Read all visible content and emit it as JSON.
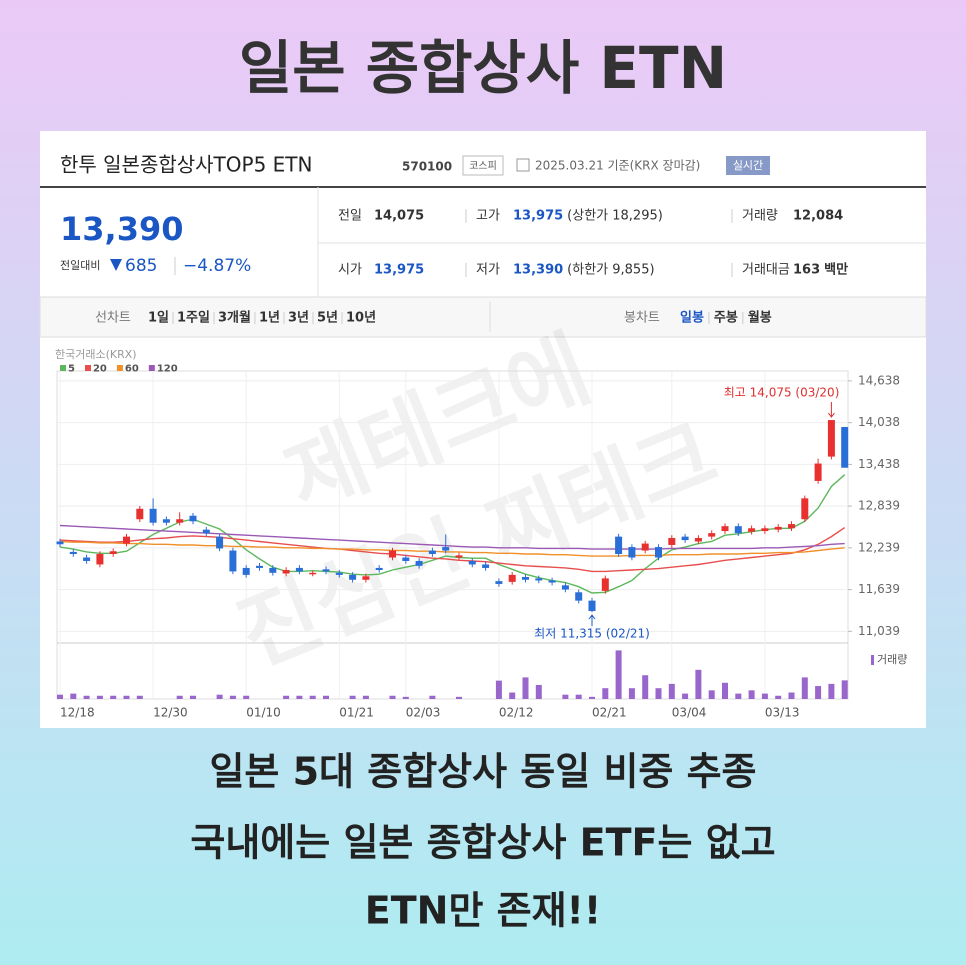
{
  "header": {
    "title": "일본 종합상사 ETN"
  },
  "quote": {
    "name": "한투 일본종합상사TOP5 ETN",
    "code": "570100",
    "market": "코스피",
    "date": "2025.03.21 기준(KRX 장마감)",
    "realtime": "실시간",
    "price": "13,390",
    "change_label": "전일대비",
    "change": "685",
    "change_pct": "−4.87%",
    "stats": [
      [
        {
          "label": "전일",
          "value": "14,075"
        },
        {
          "label": "고가",
          "value": "13,975",
          "note": "(상한가 18,295)"
        },
        {
          "label": "거래량",
          "value": "12,084"
        }
      ],
      [
        {
          "label": "시가",
          "value": "13,975"
        },
        {
          "label": "저가",
          "value": "13,390",
          "note": "(하한가 9,855)"
        },
        {
          "label": "거래대금",
          "value": "163",
          "unit": "백만"
        }
      ]
    ]
  },
  "tabs": {
    "line_label": "선차트",
    "line_periods": [
      "1일",
      "1주일",
      "3개월",
      "1년",
      "3년",
      "5년",
      "10년"
    ],
    "candle_label": "봉차트",
    "candle_periods": [
      "일봉",
      "주봉",
      "월봉"
    ]
  },
  "watermark": [
    "제테크에",
    "진심인 찌테크"
  ],
  "chart_data": {
    "type": "candlestick",
    "source": "한국거래소(KRX)",
    "grid": true,
    "up_color": "#e8312f",
    "down_color": "#2a6ed8",
    "categories": [
      "12/18",
      null,
      null,
      null,
      null,
      null,
      null,
      "12/30",
      null,
      null,
      null,
      null,
      null,
      null,
      "01/10",
      null,
      null,
      null,
      null,
      null,
      null,
      "01/21",
      null,
      null,
      null,
      null,
      "02/03",
      null,
      null,
      null,
      null,
      null,
      null,
      "02/12",
      null,
      null,
      null,
      null,
      null,
      null,
      "02/21",
      null,
      null,
      null,
      null,
      null,
      "03/04",
      null,
      null,
      null,
      null,
      null,
      null,
      "03/13",
      null,
      null,
      null,
      null,
      null,
      null
    ],
    "open": [
      12330,
      12180,
      12100,
      12000,
      12150,
      12300,
      12650,
      12800,
      12650,
      12600,
      12700,
      12500,
      12400,
      12200,
      11950,
      11980,
      11950,
      11870,
      11950,
      11870,
      11930,
      11880,
      11850,
      11780,
      11950,
      12100,
      12100,
      12050,
      12200,
      12250,
      12100,
      12050,
      12000,
      11760,
      11750,
      11820,
      11800,
      11770,
      11700,
      11600,
      11480,
      11620,
      12400,
      12250,
      12200,
      12250,
      12280,
      12400,
      12330,
      12400,
      12480,
      12550,
      12470,
      12480,
      12500,
      12520,
      12650,
      13200,
      13550,
      13975
    ],
    "high": [
      12370,
      12220,
      12140,
      12190,
      12230,
      12440,
      12840,
      12950,
      12690,
      12750,
      12740,
      12540,
      12440,
      12240,
      11990,
      12020,
      11990,
      11960,
      11990,
      11910,
      11970,
      11920,
      11890,
      11870,
      11990,
      12240,
      12140,
      12090,
      12240,
      12430,
      12170,
      12090,
      12040,
      11800,
      11890,
      11860,
      11840,
      11810,
      11740,
      11640,
      11520,
      11840,
      12440,
      12290,
      12340,
      12290,
      12420,
      12440,
      12420,
      12490,
      12590,
      12590,
      12560,
      12560,
      12580,
      12620,
      12990,
      13520,
      14075,
      13975
    ],
    "low": [
      12250,
      12110,
      12010,
      11960,
      12110,
      12260,
      12610,
      12560,
      12560,
      12560,
      12580,
      12410,
      12190,
      11860,
      11810,
      11910,
      11840,
      11830,
      11860,
      11830,
      11860,
      11810,
      11740,
      11740,
      11880,
      12060,
      12010,
      11940,
      12110,
      12160,
      12060,
      11960,
      11910,
      11680,
      11710,
      11740,
      11730,
      11700,
      11600,
      11440,
      11315,
      11580,
      12110,
      12060,
      12160,
      12060,
      12240,
      12310,
      12290,
      12360,
      12440,
      12410,
      12430,
      12440,
      12460,
      12480,
      12610,
      13160,
      13510,
      13390
    ],
    "close": [
      12290,
      12150,
      12050,
      12150,
      12190,
      12400,
      12800,
      12600,
      12600,
      12650,
      12620,
      12450,
      12230,
      11900,
      11850,
      11950,
      11880,
      11920,
      11900,
      11880,
      11900,
      11850,
      11780,
      11830,
      11920,
      12200,
      12050,
      11980,
      12150,
      12200,
      12130,
      12000,
      11950,
      11720,
      11850,
      11780,
      11770,
      11740,
      11640,
      11480,
      11330,
      11800,
      12150,
      12100,
      12300,
      12100,
      12380,
      12350,
      12380,
      12450,
      12550,
      12450,
      12520,
      12520,
      12540,
      12580,
      12950,
      13450,
      14075,
      13390
    ],
    "series": [
      {
        "name": "5",
        "color": "#5cb85c",
        "values": [
          12250,
          12220,
          12180,
          12160,
          12160,
          12190,
          12310,
          12430,
          12520,
          12610,
          12650,
          12580,
          12510,
          12370,
          12210,
          12080,
          11960,
          11900,
          11900,
          11910,
          11900,
          11890,
          11860,
          11850,
          11860,
          11920,
          11960,
          12000,
          12060,
          12120,
          12100,
          12090,
          12090,
          12000,
          11930,
          11860,
          11810,
          11770,
          11740,
          11680,
          11590,
          11600,
          11680,
          11770,
          11940,
          12090,
          12210,
          12250,
          12300,
          12330,
          12420,
          12440,
          12470,
          12500,
          12520,
          12520,
          12620,
          12810,
          13120,
          13290
        ]
      },
      {
        "name": "20",
        "color": "#e84e4e",
        "values": [
          12350,
          12340,
          12330,
          12320,
          12320,
          12330,
          12350,
          12370,
          12380,
          12400,
          12410,
          12400,
          12390,
          12370,
          12350,
          12330,
          12310,
          12290,
          12270,
          12250,
          12230,
          12220,
          12200,
          12180,
          12160,
          12150,
          12130,
          12110,
          12090,
          12080,
          12060,
          12050,
          12040,
          12020,
          12000,
          11980,
          11970,
          11960,
          11950,
          11930,
          11900,
          11900,
          11910,
          11920,
          11930,
          11940,
          11960,
          11980,
          12000,
          12030,
          12060,
          12080,
          12100,
          12120,
          12140,
          12160,
          12210,
          12290,
          12400,
          12530
        ]
      },
      {
        "name": "60",
        "color": "#f0902a",
        "values": [
          12330,
          12320,
          12320,
          12310,
          12310,
          12300,
          12300,
          12290,
          12290,
          12280,
          12280,
          12270,
          12270,
          12260,
          12260,
          12250,
          12250,
          12240,
          12240,
          12230,
          12230,
          12220,
          12220,
          12210,
          12210,
          12200,
          12200,
          12190,
          12190,
          12180,
          12180,
          12170,
          12170,
          12160,
          12160,
          12150,
          12150,
          12140,
          12140,
          12130,
          12120,
          12120,
          12120,
          12130,
          12130,
          12130,
          12140,
          12140,
          12140,
          12150,
          12150,
          12150,
          12160,
          12160,
          12170,
          12170,
          12180,
          12200,
          12220,
          12240
        ]
      },
      {
        "name": "120",
        "color": "#9b59b6",
        "values": [
          12560,
          12550,
          12540,
          12530,
          12520,
          12510,
          12500,
          12490,
          12480,
          12470,
          12460,
          12450,
          12440,
          12430,
          12420,
          12410,
          12400,
          12390,
          12380,
          12370,
          12360,
          12350,
          12340,
          12330,
          12320,
          12310,
          12300,
          12290,
          12280,
          12270,
          12260,
          12250,
          12250,
          12240,
          12240,
          12240,
          12230,
          12230,
          12230,
          12230,
          12220,
          12220,
          12220,
          12220,
          12220,
          12220,
          12230,
          12230,
          12230,
          12230,
          12230,
          12230,
          12230,
          12240,
          12240,
          12250,
          12260,
          12270,
          12290,
          12300
        ]
      }
    ],
    "ylim": [
      10900,
      14780
    ],
    "yticks": [
      {
        "value": 11039,
        "label": "11,039"
      },
      {
        "value": 11639,
        "label": "11,639"
      },
      {
        "value": 12239,
        "label": "12,239"
      },
      {
        "value": 12839,
        "label": "12,839"
      },
      {
        "value": 13438,
        "label": "13,438"
      },
      {
        "value": 14038,
        "label": "14,038"
      },
      {
        "value": 14638,
        "label": "14,638"
      }
    ],
    "annotations": {
      "high": "최고 14,075 (03/20)",
      "low": "최저 11,315 (02/21)"
    },
    "volume": {
      "name": "거래량",
      "color": "#9966cc",
      "ylim": [
        0,
        35000
      ],
      "values": [
        2800,
        3500,
        2100,
        2100,
        2100,
        2100,
        2100,
        0,
        0,
        2100,
        2100,
        0,
        2800,
        2100,
        2100,
        0,
        0,
        2100,
        2100,
        2100,
        2100,
        0,
        2100,
        2100,
        0,
        2100,
        1400,
        0,
        2100,
        0,
        1400,
        0,
        0,
        11900,
        4200,
        14000,
        9100,
        0,
        2800,
        2800,
        1400,
        7000,
        31500,
        7000,
        15400,
        7000,
        9800,
        3500,
        18900,
        5600,
        10500,
        3500,
        5600,
        3500,
        2100,
        4200,
        14000,
        8400,
        9800,
        12084
      ]
    }
  },
  "footer": {
    "lines": [
      "일본 5대 종합상사 동일 비중 추종",
      "국내에는 일본 종합상사 ETF는 없고",
      "ETN만 존재!!"
    ]
  }
}
